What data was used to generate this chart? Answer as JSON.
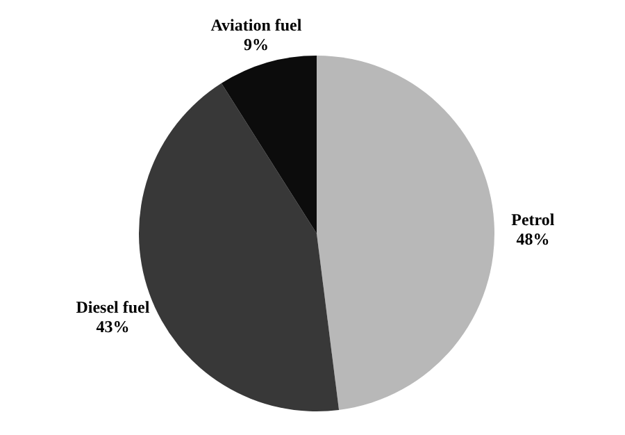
{
  "chart_data": {
    "type": "pie",
    "categories": [
      "Petrol",
      "Diesel fuel",
      "Aviation fuel"
    ],
    "values": [
      48,
      43,
      9
    ],
    "value_labels": [
      "48%",
      "43%",
      "9%"
    ],
    "colors": [
      "#b8b8b8",
      "#383838",
      "#0c0c0c"
    ]
  }
}
